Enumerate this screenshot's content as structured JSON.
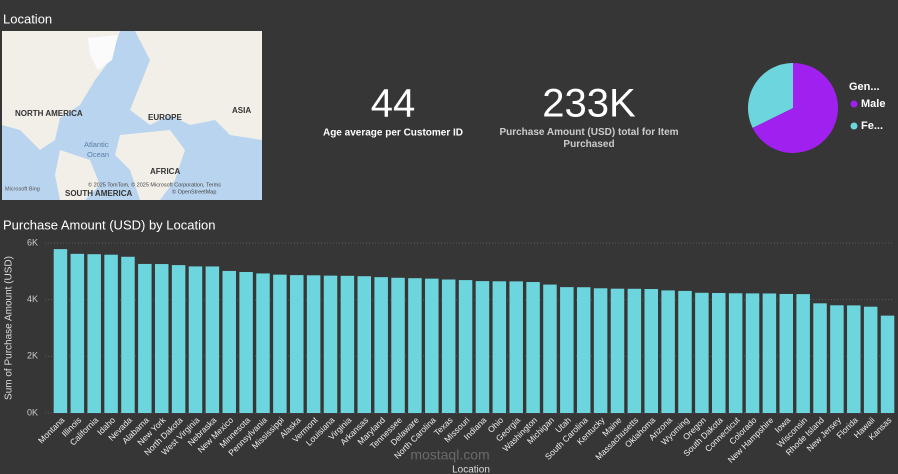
{
  "location_visual": {
    "title": "Location",
    "map_labels": [
      "NORTH AMERICA",
      "EUROPE",
      "ASIA",
      "AFRICA",
      "SOUTH AMERICA",
      "Atlantic",
      "Ocean"
    ],
    "attribution": "© 2025 TomTom, © 2025 Microsoft Corporation, Terms",
    "attribution2": "© OpenStreetMap",
    "logo": "Microsoft Bing"
  },
  "cards": [
    {
      "value": 44,
      "label": "Age average per Customer ID"
    },
    {
      "value": "233K",
      "label": "Purchase Amount (USD) total for Item Purchased"
    }
  ],
  "chart_data": [
    {
      "type": "pie",
      "legend_title": "Gen...",
      "categories": [
        "Male",
        "Fe..."
      ],
      "values": [
        157890,
        75191
      ],
      "colors": [
        "#a020f0",
        "#6dd5dd"
      ]
    },
    {
      "type": "bar",
      "title": "Purchase Amount (USD) by Location",
      "x_label": "Location",
      "y_label": "Sum of Purchase Amount (USD)",
      "categories": [
        "Montana",
        "Illinois",
        "California",
        "Idaho",
        "Nevada",
        "Alabama",
        "New York",
        "North Dakota",
        "West Virginia",
        "Nebraska",
        "New Mexico",
        "Minnesota",
        "Pennsylvania",
        "Mississippi",
        "Alaska",
        "Vermont",
        "Louisiana",
        "Virginia",
        "Arkansas",
        "Maryland",
        "Tennessee",
        "Delaware",
        "North Carolina",
        "Texas",
        "Missouri",
        "Indiana",
        "Ohio",
        "Georgia",
        "Washington",
        "Michigan",
        "Utah",
        "South Carolina",
        "Kentucky",
        "Maine",
        "Massachusetts",
        "Oklahoma",
        "Arizona",
        "Wyoming",
        "Oregon",
        "South Dakota",
        "Connecticut",
        "Colorado",
        "New Hampshire",
        "Iowa",
        "Wisconsin",
        "Rhode Island",
        "New Jersey",
        "Florida",
        "Hawaii",
        "Kansas"
      ],
      "values": [
        5784,
        5617,
        5605,
        5587,
        5514,
        5261,
        5257,
        5220,
        5174,
        5172,
        5014,
        4977,
        4926,
        4883,
        4867,
        4860,
        4848,
        4842,
        4828,
        4795,
        4772,
        4758,
        4742,
        4712,
        4691,
        4655,
        4649,
        4645,
        4623,
        4533,
        4443,
        4439,
        4402,
        4388,
        4384,
        4376,
        4326,
        4309,
        4243,
        4236,
        4226,
        4222,
        4219,
        4201,
        4196,
        3871,
        3802,
        3798,
        3752,
        3437
      ],
      "color": "#6dd5dd",
      "ylim": [
        0,
        6000
      ],
      "yticks": [
        {
          "value": 0,
          "label": "0K"
        },
        {
          "value": 2000,
          "label": "2K"
        },
        {
          "value": 4000,
          "label": "4K"
        },
        {
          "value": 6000,
          "label": "6K"
        }
      ],
      "grid": true
    }
  ],
  "watermark": "mostaql.com"
}
